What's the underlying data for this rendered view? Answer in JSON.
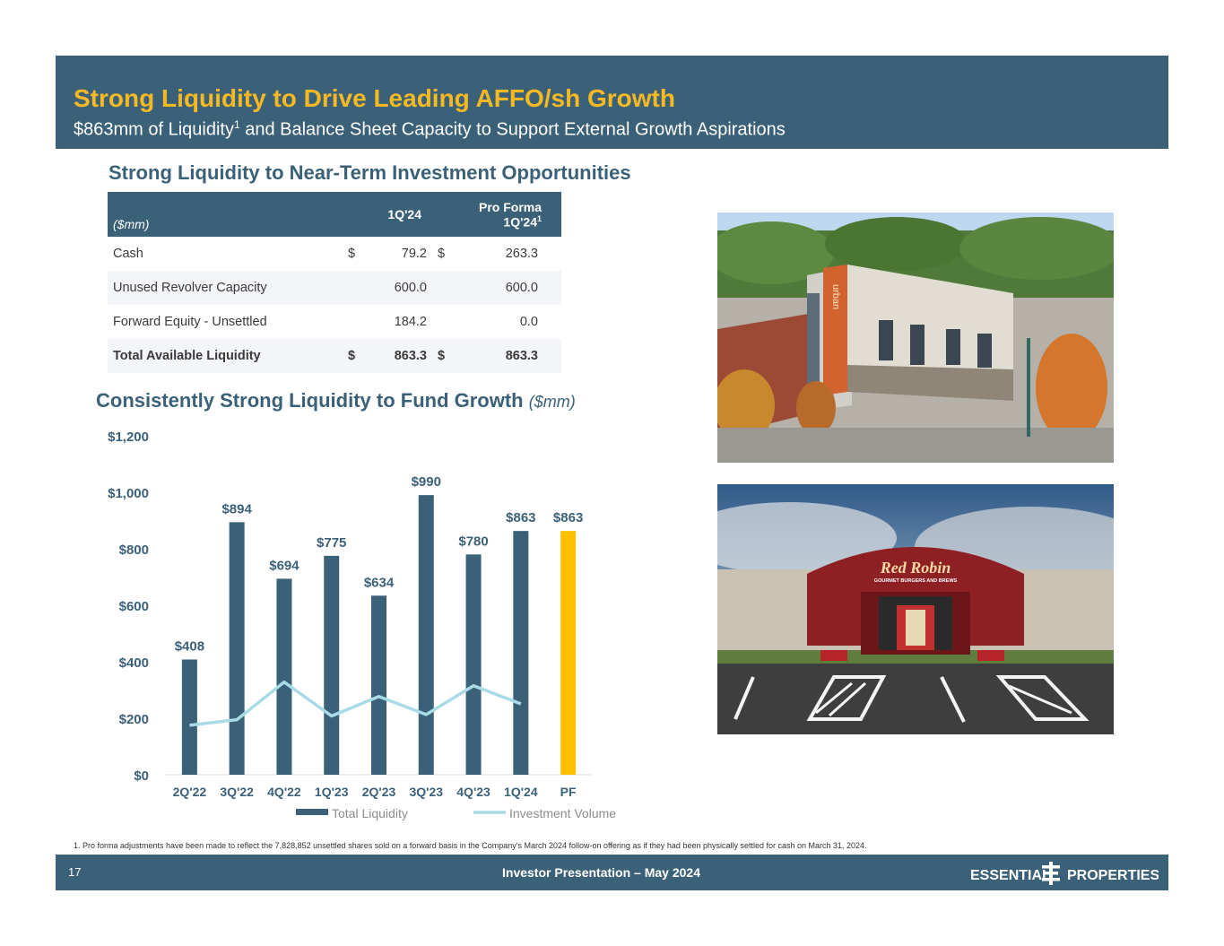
{
  "header": {
    "title": "Strong Liquidity to Drive Leading AFFO/sh Growth",
    "subtitle_pre": "$863mm of Liquidity",
    "subtitle_sup": "1",
    "subtitle_post": " and Balance Sheet Capacity to Support External Growth Aspirations"
  },
  "table_section": {
    "title": "Strong Liquidity to Near-Term Investment Opportunities",
    "units": "($mm)",
    "col1": "1Q'24",
    "col2_line1": "Pro Forma",
    "col2_line2": "1Q'24",
    "col2_sup": "1",
    "rows": [
      {
        "label": "Cash",
        "cur1": "$",
        "v1": "79.2",
        "cur2": "$",
        "v2": "263.3"
      },
      {
        "label": "Unused Revolver Capacity",
        "cur1": "",
        "v1": "600.0",
        "cur2": "",
        "v2": "600.0"
      },
      {
        "label": "Forward Equity - Unsettled",
        "cur1": "",
        "v1": "184.2",
        "cur2": "",
        "v2": "0.0"
      },
      {
        "label": "Total Available Liquidity",
        "cur1": "$",
        "v1": "863.3",
        "cur2": "$",
        "v2": "863.3"
      }
    ]
  },
  "chart_section": {
    "title": "Consistently Strong Liquidity to Fund Growth",
    "unit": "($mm)"
  },
  "chart_data": {
    "type": "bar",
    "categories": [
      "2Q'22",
      "3Q'22",
      "4Q'22",
      "1Q'23",
      "2Q'23",
      "3Q'23",
      "4Q'23",
      "1Q'24",
      "PF"
    ],
    "series": [
      {
        "name": "Total Liquidity",
        "type": "bar",
        "values": [
          408,
          894,
          694,
          775,
          634,
          990,
          780,
          863,
          863
        ],
        "labels": [
          "$408",
          "$894",
          "$694",
          "$775",
          "$634",
          "$990",
          "$780",
          "$863",
          "$863"
        ]
      },
      {
        "name": "Investment Volume",
        "type": "line",
        "values": [
          175,
          195,
          328,
          208,
          277,
          213,
          315,
          251,
          null
        ]
      }
    ],
    "y_ticks": [
      "$0",
      "$200",
      "$400",
      "$600",
      "$800",
      "$1,000",
      "$1,200"
    ],
    "ylim": [
      0,
      1200
    ],
    "legend_position": "bottom",
    "colors": {
      "bar": "#3b6178",
      "highlight": "#ffc000",
      "line": "#a8dbe6"
    }
  },
  "photos": {
    "top_sign": "urban",
    "bottom_sign_main": "Red Robin",
    "bottom_sign_sub": "GOURMET BURGERS AND BREWS"
  },
  "footnote": "1.  Pro forma adjustments have been made to reflect the 7,828,852 unsettled shares sold on a forward basis in the Company's March 2024 follow-on offering as if they had been physically settled for cash on March 31, 2024.",
  "footer": {
    "page": "17",
    "text": "Investor Presentation – May 2024",
    "logo_left": "ESSENTIAL",
    "logo_right": "PROPERTIES"
  }
}
